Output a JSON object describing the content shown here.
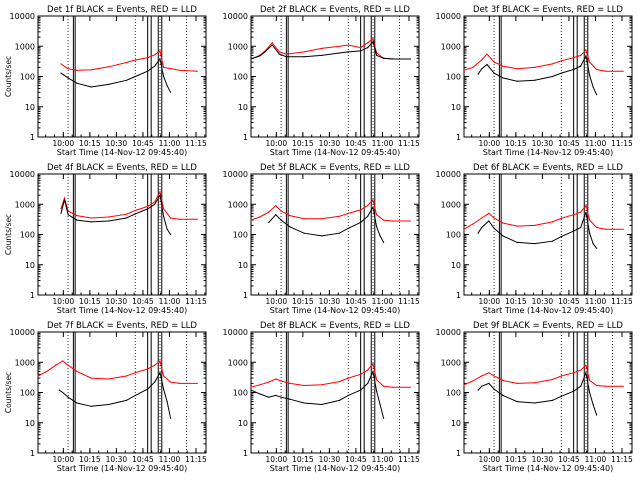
{
  "page": {
    "background": "#ffffff",
    "colors": {
      "events": "#000000",
      "lld": "#ff0000",
      "axis": "#000000"
    }
  },
  "chart_data": [
    {
      "type": "line",
      "title": "Det 1f BLACK = Events, RED = LLD",
      "xlabel": "Start Time (14-Nov-12 09:45:40)",
      "ylabel": "Counts/sec",
      "xticks": [
        "10:00",
        "10:15",
        "10:30",
        "10:45",
        "11:00",
        "11:15"
      ],
      "yticks": [
        "1",
        "10",
        "100",
        "1000",
        "10000"
      ],
      "ylim": [
        1,
        10000
      ],
      "yscale": "log",
      "xlim_minutes": [
        0,
        95
      ],
      "dotted_vlines": [
        17,
        55,
        69,
        84
      ],
      "solid_vlines": [
        20,
        21,
        62,
        64,
        68,
        70
      ],
      "series": [
        {
          "color": "#ff0000",
          "x": [
            13,
            17,
            22,
            30,
            40,
            50,
            55,
            62,
            66,
            69,
            71,
            80,
            90
          ],
          "y": [
            260,
            180,
            160,
            165,
            210,
            290,
            350,
            420,
            520,
            700,
            200,
            160,
            150
          ]
        },
        {
          "color": "#000000",
          "x": [
            13,
            17,
            22,
            30,
            40,
            50,
            55,
            62,
            66,
            69,
            71,
            73,
            75
          ],
          "y": [
            130,
            90,
            60,
            45,
            55,
            75,
            100,
            150,
            220,
            380,
            100,
            50,
            30
          ]
        }
      ]
    },
    {
      "type": "line",
      "title": "Det 2f BLACK = Events, RED = LLD",
      "xlabel": "Start Time (14-Nov-12 09:45:40)",
      "ylabel": "",
      "xticks": [
        "10:00",
        "10:15",
        "10:30",
        "10:45",
        "11:00",
        "11:15"
      ],
      "yticks": [
        "1",
        "10",
        "100",
        "1000",
        "10000"
      ],
      "ylim": [
        1,
        10000
      ],
      "yscale": "log",
      "xlim_minutes": [
        0,
        95
      ],
      "dotted_vlines": [
        17,
        55,
        69,
        84
      ],
      "solid_vlines": [
        20,
        21,
        62,
        64,
        68,
        70
      ],
      "series": [
        {
          "color": "#ff0000",
          "x": [
            0,
            5,
            8,
            12,
            16,
            20,
            30,
            40,
            50,
            55,
            62,
            66,
            69,
            71,
            75,
            80,
            90
          ],
          "y": [
            380,
            500,
            700,
            1300,
            650,
            550,
            650,
            850,
            1000,
            1100,
            900,
            1300,
            1800,
            600,
            400,
            380,
            380
          ]
        },
        {
          "color": "#000000",
          "x": [
            0,
            5,
            8,
            12,
            16,
            20,
            30,
            40,
            50,
            55,
            62,
            66,
            69,
            71,
            75,
            80,
            90
          ],
          "y": [
            380,
            480,
            650,
            1100,
            550,
            450,
            450,
            500,
            600,
            650,
            700,
            900,
            1400,
            500,
            400,
            380,
            380
          ]
        }
      ]
    },
    {
      "type": "line",
      "title": "Det 3f BLACK = Events, RED = LLD",
      "xlabel": "Start Time (14-Nov-12 09:45:40)",
      "ylabel": "",
      "xticks": [
        "10:00",
        "10:15",
        "10:30",
        "10:45",
        "11:00",
        "11:15"
      ],
      "yticks": [
        "1",
        "10",
        "100",
        "1000",
        "10000"
      ],
      "ylim": [
        1,
        10000
      ],
      "yscale": "log",
      "xlim_minutes": [
        0,
        95
      ],
      "dotted_vlines": [
        17,
        55,
        69,
        84
      ],
      "solid_vlines": [
        20,
        21,
        62,
        64,
        68,
        70
      ],
      "series": [
        {
          "color": "#ff0000",
          "x": [
            0,
            5,
            10,
            13,
            17,
            22,
            30,
            40,
            50,
            55,
            62,
            66,
            69,
            71,
            75,
            80,
            90
          ],
          "y": [
            160,
            200,
            350,
            550,
            300,
            220,
            180,
            200,
            260,
            330,
            420,
            500,
            750,
            300,
            170,
            150,
            150
          ]
        },
        {
          "color": "#000000",
          "x": [
            8,
            10,
            13,
            17,
            22,
            30,
            40,
            50,
            55,
            62,
            66,
            69,
            71,
            73,
            75
          ],
          "y": [
            120,
            180,
            250,
            130,
            90,
            70,
            75,
            100,
            130,
            170,
            220,
            480,
            110,
            45,
            25
          ]
        }
      ]
    },
    {
      "type": "line",
      "title": "Det 4f BLACK = Events, RED = LLD",
      "xlabel": "Start Time (14-Nov-12 09:45:40)",
      "ylabel": "Counts/sec",
      "xticks": [
        "10:00",
        "10:15",
        "10:30",
        "10:45",
        "11:00",
        "11:15"
      ],
      "yticks": [
        "1",
        "10",
        "100",
        "1000",
        "10000"
      ],
      "ylim": [
        1,
        10000
      ],
      "yscale": "log",
      "xlim_minutes": [
        0,
        95
      ],
      "dotted_vlines": [
        17,
        55,
        69,
        84
      ],
      "solid_vlines": [
        20,
        21,
        62,
        64,
        68,
        70
      ],
      "series": [
        {
          "color": "#ff0000",
          "x": [
            13,
            15,
            17,
            22,
            30,
            40,
            50,
            55,
            62,
            66,
            69,
            71,
            75,
            80,
            90
          ],
          "y": [
            700,
            1600,
            600,
            420,
            350,
            380,
            470,
            620,
            850,
            1200,
            2600,
            700,
            350,
            320,
            320
          ]
        },
        {
          "color": "#000000",
          "x": [
            13,
            15,
            17,
            22,
            30,
            40,
            50,
            55,
            62,
            66,
            69,
            71,
            73,
            75
          ],
          "y": [
            500,
            1400,
            450,
            300,
            260,
            280,
            350,
            480,
            700,
            1000,
            2000,
            400,
            150,
            100
          ]
        }
      ]
    },
    {
      "type": "line",
      "title": "Det 5f BLACK = Events, RED = LLD",
      "xlabel": "Start Time (14-Nov-12 09:45:40)",
      "ylabel": "",
      "xticks": [
        "10:00",
        "10:15",
        "10:30",
        "10:45",
        "11:00",
        "11:15"
      ],
      "yticks": [
        "1",
        "10",
        "100",
        "1000",
        "10000"
      ],
      "ylim": [
        1,
        10000
      ],
      "yscale": "log",
      "xlim_minutes": [
        0,
        95
      ],
      "dotted_vlines": [
        17,
        55,
        69,
        84
      ],
      "solid_vlines": [
        20,
        21,
        62,
        64,
        68,
        70
      ],
      "series": [
        {
          "color": "#ff0000",
          "x": [
            0,
            5,
            10,
            14,
            17,
            22,
            30,
            40,
            50,
            55,
            62,
            66,
            69,
            71,
            75,
            80,
            90
          ],
          "y": [
            300,
            380,
            550,
            900,
            600,
            420,
            330,
            330,
            400,
            500,
            650,
            900,
            1400,
            450,
            300,
            280,
            280
          ]
        },
        {
          "color": "#000000",
          "x": [
            10,
            14,
            17,
            22,
            30,
            40,
            50,
            55,
            62,
            66,
            69,
            71,
            73,
            75
          ],
          "y": [
            250,
            450,
            300,
            180,
            110,
            90,
            110,
            160,
            250,
            400,
            800,
            180,
            90,
            55
          ]
        }
      ]
    },
    {
      "type": "line",
      "title": "Det 6f BLACK = Events, RED = LLD",
      "xlabel": "Start Time (14-Nov-12 09:45:40)",
      "ylabel": "",
      "xticks": [
        "10:00",
        "10:15",
        "10:30",
        "10:45",
        "11:00",
        "11:15"
      ],
      "yticks": [
        "1",
        "10",
        "100",
        "1000",
        "10000"
      ],
      "ylim": [
        1,
        10000
      ],
      "yscale": "log",
      "xlim_minutes": [
        0,
        95
      ],
      "dotted_vlines": [
        17,
        55,
        69,
        84
      ],
      "solid_vlines": [
        20,
        21,
        62,
        64,
        68,
        70
      ],
      "series": [
        {
          "color": "#ff0000",
          "x": [
            0,
            5,
            10,
            14,
            17,
            22,
            30,
            40,
            50,
            55,
            62,
            66,
            69,
            71,
            75,
            80,
            90
          ],
          "y": [
            150,
            220,
            350,
            500,
            350,
            240,
            190,
            200,
            260,
            340,
            450,
            550,
            900,
            300,
            170,
            150,
            150
          ]
        },
        {
          "color": "#000000",
          "x": [
            8,
            10,
            14,
            17,
            22,
            30,
            40,
            50,
            55,
            62,
            66,
            69,
            71,
            73,
            75
          ],
          "y": [
            110,
            170,
            280,
            160,
            90,
            55,
            50,
            60,
            85,
            130,
            170,
            550,
            110,
            50,
            35
          ]
        }
      ]
    },
    {
      "type": "line",
      "title": "Det 7f BLACK = Events, RED = LLD",
      "xlabel": "Start Time (14-Nov-12 09:45:40)",
      "ylabel": "Counts/sec",
      "xticks": [
        "10:00",
        "10:15",
        "10:30",
        "10:45",
        "11:00",
        "11:15"
      ],
      "yticks": [
        "1",
        "10",
        "100",
        "1000",
        "10000"
      ],
      "ylim": [
        1,
        10000
      ],
      "yscale": "log",
      "xlim_minutes": [
        0,
        95
      ],
      "dotted_vlines": [
        17,
        55,
        69,
        84
      ],
      "solid_vlines": [
        20,
        21,
        62,
        64,
        68,
        70
      ],
      "series": [
        {
          "color": "#ff0000",
          "x": [
            0,
            5,
            10,
            14,
            17,
            22,
            30,
            40,
            50,
            55,
            62,
            66,
            69,
            71,
            75,
            80,
            90
          ],
          "y": [
            350,
            500,
            800,
            1100,
            800,
            500,
            300,
            280,
            350,
            450,
            600,
            800,
            1100,
            350,
            220,
            200,
            200
          ]
        },
        {
          "color": "#000000",
          "x": [
            12,
            14,
            17,
            22,
            30,
            40,
            50,
            55,
            62,
            66,
            69,
            71,
            73,
            75
          ],
          "y": [
            120,
            100,
            70,
            45,
            35,
            40,
            55,
            80,
            130,
            220,
            450,
            130,
            50,
            14
          ]
        }
      ]
    },
    {
      "type": "line",
      "title": "Det 8f BLACK = Events, RED = LLD",
      "xlabel": "Start Time (14-Nov-12 09:45:40)",
      "ylabel": "",
      "xticks": [
        "10:00",
        "10:15",
        "10:30",
        "10:45",
        "11:00",
        "11:15"
      ],
      "yticks": [
        "1",
        "10",
        "100",
        "1000",
        "10000"
      ],
      "ylim": [
        1,
        10000
      ],
      "yscale": "log",
      "xlim_minutes": [
        0,
        95
      ],
      "dotted_vlines": [
        17,
        55,
        69,
        84
      ],
      "solid_vlines": [
        20,
        21,
        62,
        64,
        68,
        70
      ],
      "series": [
        {
          "color": "#ff0000",
          "x": [
            0,
            5,
            10,
            14,
            17,
            22,
            30,
            40,
            50,
            55,
            62,
            66,
            69,
            71,
            75,
            80,
            90
          ],
          "y": [
            150,
            180,
            220,
            280,
            240,
            200,
            170,
            180,
            230,
            300,
            400,
            550,
            900,
            260,
            160,
            150,
            150
          ]
        },
        {
          "color": "#000000",
          "x": [
            0,
            5,
            10,
            14,
            17,
            22,
            30,
            40,
            50,
            55,
            62,
            66,
            69,
            71,
            73,
            75
          ],
          "y": [
            120,
            90,
            70,
            80,
            70,
            60,
            45,
            40,
            55,
            80,
            120,
            200,
            500,
            110,
            40,
            14
          ]
        }
      ]
    },
    {
      "type": "line",
      "title": "Det 9f BLACK = Events, RED = LLD",
      "xlabel": "Start Time (14-Nov-12 09:45:40)",
      "ylabel": "",
      "xticks": [
        "10:00",
        "10:15",
        "10:30",
        "10:45",
        "11:00",
        "11:15"
      ],
      "yticks": [
        "1",
        "10",
        "100",
        "1000",
        "10000"
      ],
      "ylim": [
        1,
        10000
      ],
      "yscale": "log",
      "xlim_minutes": [
        0,
        95
      ],
      "dotted_vlines": [
        17,
        55,
        69,
        84
      ],
      "solid_vlines": [
        20,
        21,
        62,
        64,
        68,
        70
      ],
      "series": [
        {
          "color": "#ff0000",
          "x": [
            0,
            5,
            10,
            14,
            17,
            22,
            30,
            40,
            50,
            55,
            62,
            66,
            69,
            71,
            75,
            80,
            90
          ],
          "y": [
            180,
            240,
            350,
            450,
            350,
            250,
            200,
            210,
            270,
            350,
            450,
            550,
            800,
            250,
            170,
            160,
            160
          ]
        },
        {
          "color": "#000000",
          "x": [
            8,
            10,
            14,
            17,
            22,
            30,
            40,
            50,
            55,
            62,
            66,
            69,
            71,
            73,
            75
          ],
          "y": [
            120,
            160,
            200,
            130,
            80,
            50,
            45,
            55,
            75,
            110,
            160,
            450,
            100,
            40,
            18
          ]
        }
      ]
    }
  ]
}
